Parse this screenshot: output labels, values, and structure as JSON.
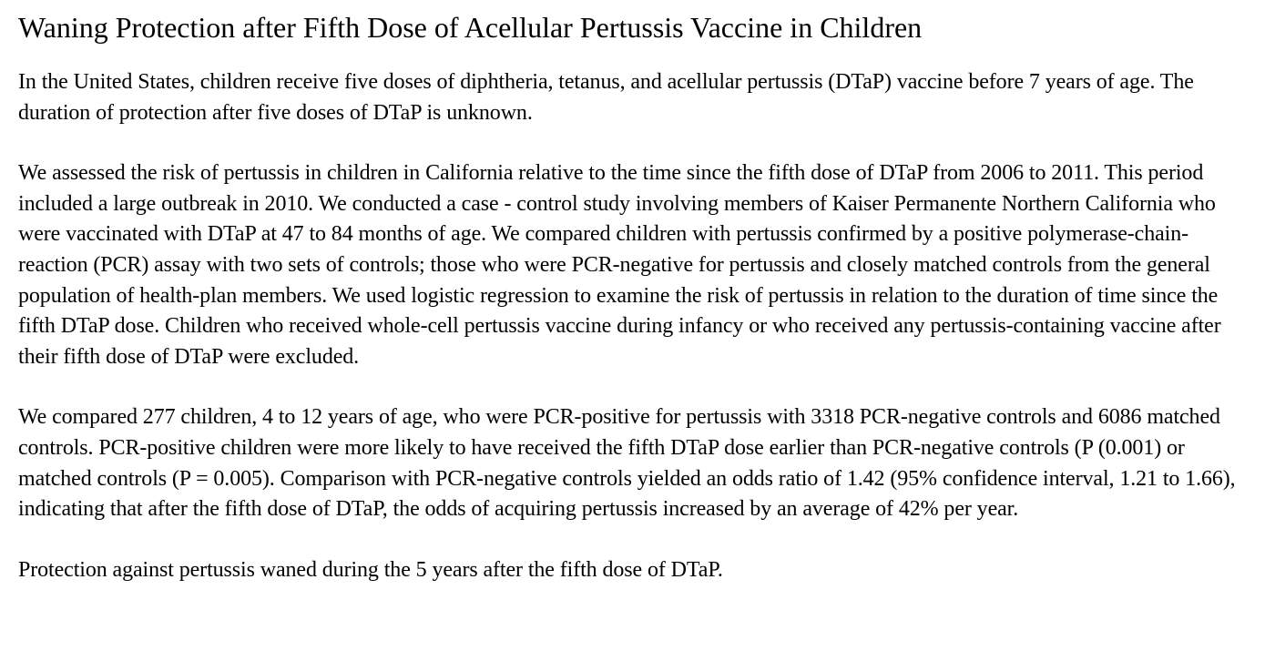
{
  "title": "Waning Protection after Fifth Dose of Acellular Pertussis Vaccine in Children",
  "paragraphs": [
    "In the United States, children receive five doses of diphtheria, tetanus, and acellular pertussis (DTaP) vaccine before 7 years of age. The duration of protection after five doses of DTaP is unknown.",
    "We assessed the risk of pertussis in children in California relative to the time since the fifth dose of DTaP from 2006 to 2011. This period included a large outbreak in 2010. We conducted a case - control study involving members of Kaiser Permanente Northern California who were vaccinated with DTaP at 47 to 84 months of age. We compared children with pertussis confirmed by a positive polymerase-chain-reaction (PCR) assay with two sets of controls; those who were PCR-negative for pertussis and closely matched controls from the general population of health-plan members. We used logistic regression to examine the risk of pertussis in relation to the duration of time since the fifth DTaP dose. Children who received whole-cell pertussis vaccine during infancy or who received any pertussis-containing vaccine after their fifth dose of DTaP were excluded.",
    "We compared 277 children, 4 to 12 years of age, who were PCR-positive for pertussis with 3318 PCR-negative controls and 6086 matched controls. PCR-positive children were more likely to have received the fifth DTaP dose earlier than PCR-negative controls (P (0.001) or matched controls (P = 0.005). Comparison with PCR-negative controls yielded an odds ratio of 1.42 (95% confidence interval, 1.21 to 1.66), indicating that after the fifth dose of DTaP, the odds of acquiring pertussis increased by an average of 42% per year.",
    "Protection against pertussis waned during the 5 years after the fifth dose of DTaP."
  ]
}
